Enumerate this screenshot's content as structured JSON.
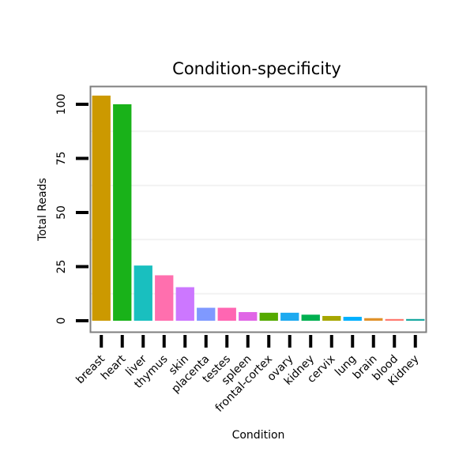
{
  "chart_data": {
    "type": "bar",
    "title": "Condition-specificity",
    "xlabel": "Condition",
    "ylabel": "Total Reads",
    "categories": [
      "breast",
      "heart",
      "liver",
      "thymus",
      "skin",
      "placenta",
      "testes",
      "spleen",
      "frontal-cortex",
      "ovary",
      "kidney",
      "cervix",
      "lung",
      "brain",
      "blood",
      "Kidney"
    ],
    "values": [
      104,
      100,
      25.5,
      21,
      15.5,
      6,
      6,
      4,
      3.7,
      3.7,
      2.8,
      2.2,
      1.8,
      1.2,
      0.8,
      0.8
    ],
    "ylim": [
      -4.5,
      110
    ],
    "yticks": [
      0,
      25,
      50,
      75,
      100
    ],
    "colors": [
      "#cc9900",
      "#19b219",
      "#19bfbf",
      "#ff6fae",
      "#cc77ff",
      "#7f99ff",
      "#ff66b2",
      "#e066e6",
      "#55aa00",
      "#1eaaf0",
      "#00b050",
      "#a6a600",
      "#00b0ff",
      "#e0922a",
      "#ff7a70",
      "#19a8a0"
    ],
    "grid": true
  }
}
